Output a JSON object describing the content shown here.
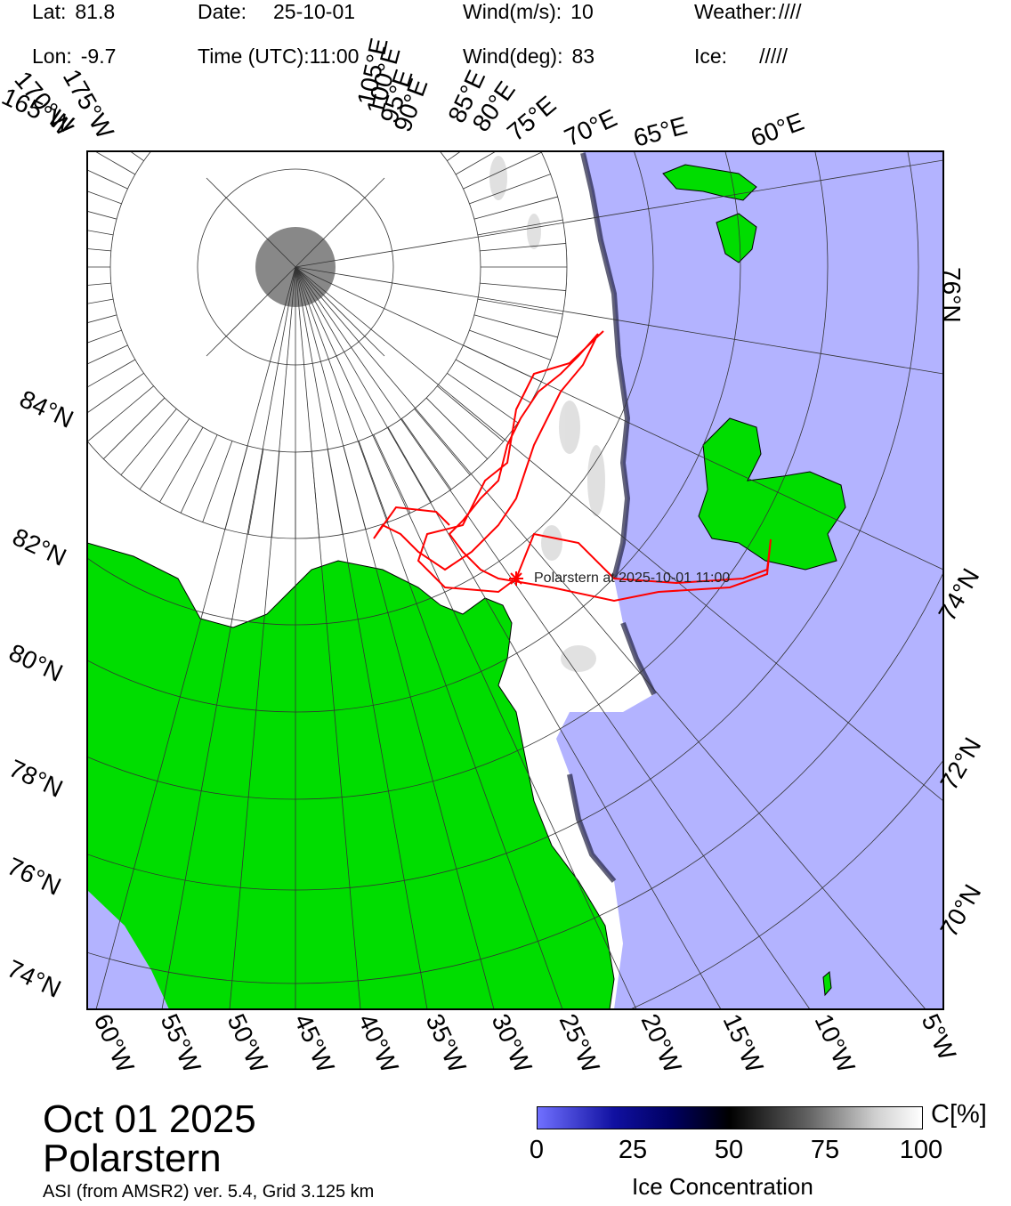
{
  "header": {
    "lat_label": "Lat:",
    "lat_value": "81.8",
    "lon_label": "Lon:",
    "lon_value": "-9.7",
    "date_label": "Date:",
    "date_value": "25-10-01",
    "time_label": "Time (UTC):",
    "time_value": "11:00",
    "wind_speed_label": "Wind(m/s):",
    "wind_speed_value": "10",
    "wind_dir_label": "Wind(deg):",
    "wind_dir_value": "83",
    "weather_label": "Weather:",
    "weather_value": "////",
    "ice_label": "Ice:",
    "ice_value": "/////"
  },
  "map": {
    "ship_label": "Polarstern at 2025-10-01 11:00",
    "bottom_labels": [
      "60°W",
      "55°W",
      "50°W",
      "45°W",
      "40°W",
      "35°W",
      "30°W",
      "25°W",
      "20°W",
      "15°W",
      "10°W",
      "5°W"
    ],
    "left_labels": [
      "84°N",
      "82°N",
      "80°N",
      "78°N",
      "76°N",
      "74°N"
    ],
    "right_labels": [
      "76°N",
      "74°N",
      "72°N",
      "70°N"
    ],
    "top_labels": [
      "165°W",
      "170°W",
      "175°W",
      "60°E",
      "65°E",
      "70°E",
      "75°E",
      "80°E",
      "85°E",
      "90°E",
      "95°E",
      "100°E",
      "105°E"
    ],
    "colors": {
      "ocean": "#b3b3ff",
      "land": "#00dd00",
      "ice": "#ffffff",
      "track": "#ff0000",
      "pole": "#888888"
    }
  },
  "footer": {
    "date": "Oct 01 2025",
    "vessel": "Polarstern",
    "product": "ASI (from AMSR2) ver. 5.4,  Grid 3.125 km"
  },
  "colorbar": {
    "unit": "C[%]",
    "ticks": [
      "0",
      "25",
      "50",
      "75",
      "100"
    ],
    "title": "Ice Concentration"
  }
}
